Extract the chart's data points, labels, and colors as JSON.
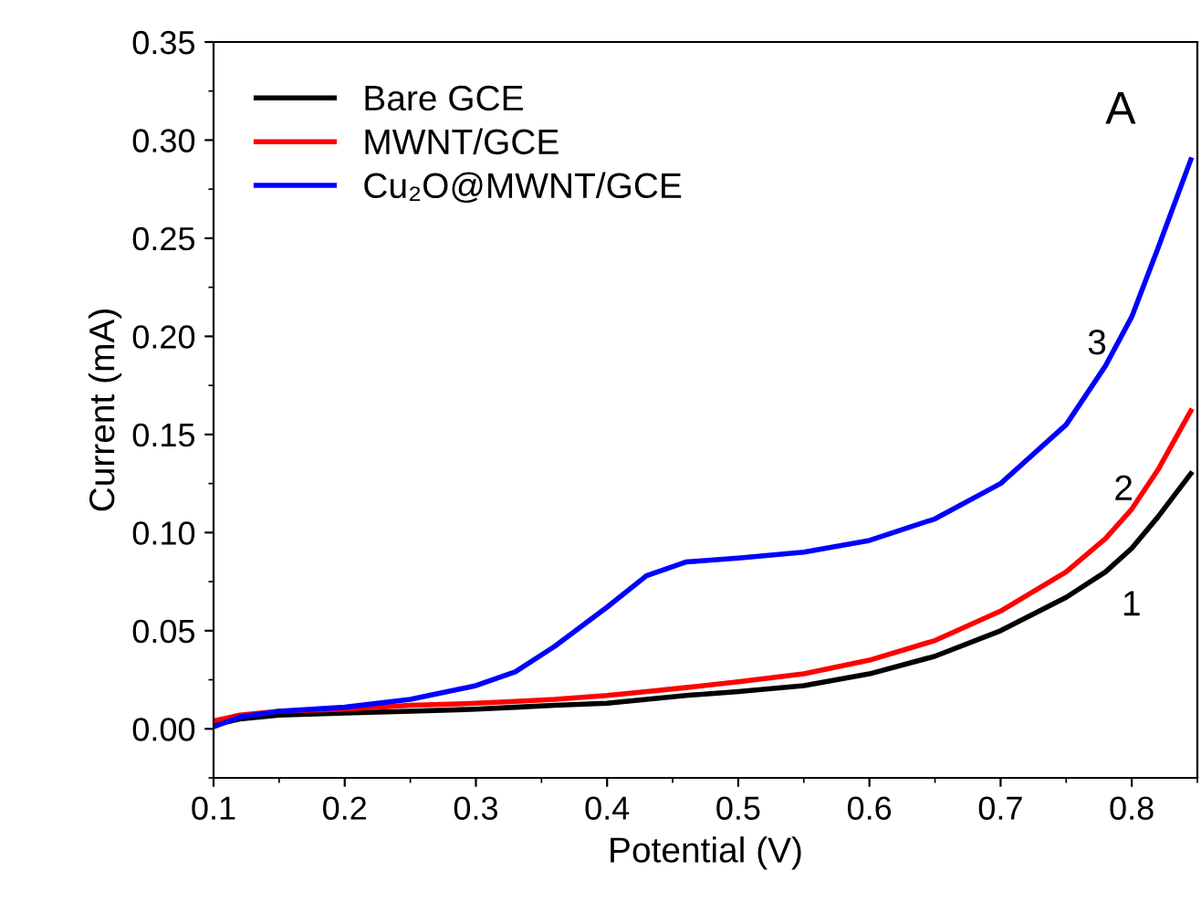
{
  "chart_data": {
    "type": "line",
    "xlabel": "Potential (V)",
    "ylabel": "Current (mA)",
    "xlim": [
      0.1,
      0.85
    ],
    "ylim": [
      -0.025,
      0.35
    ],
    "xticks": [
      0.1,
      0.2,
      0.3,
      0.4,
      0.5,
      0.6,
      0.7,
      0.8
    ],
    "yticks": [
      {
        "value": 0,
        "label": "0.00"
      },
      0.05,
      {
        "value": 0.1,
        "label": "0.10"
      },
      0.15,
      {
        "value": 0.2,
        "label": "0.20"
      },
      0.25,
      {
        "value": 0.3,
        "label": "0.30"
      },
      0.35
    ],
    "legend": "top left",
    "grid": false,
    "x": [
      0.1,
      0.12,
      0.15,
      0.2,
      0.25,
      0.3,
      0.33,
      0.36,
      0.4,
      0.43,
      0.46,
      0.5,
      0.55,
      0.6,
      0.65,
      0.7,
      0.75,
      0.78,
      0.8,
      0.82,
      0.845
    ],
    "series": [
      {
        "name": "Bare GCE",
        "color": "#000000",
        "values": [
          0.002,
          0.005,
          0.007,
          0.008,
          0.009,
          0.01,
          0.011,
          0.012,
          0.013,
          0.015,
          0.017,
          0.019,
          0.022,
          0.028,
          0.037,
          0.05,
          0.067,
          0.08,
          0.092,
          0.108,
          0.13
        ]
      },
      {
        "name": "MWNT/GCE",
        "color": "#ff0000",
        "values": [
          0.004,
          0.007,
          0.009,
          0.01,
          0.012,
          0.013,
          0.014,
          0.015,
          0.017,
          0.019,
          0.021,
          0.024,
          0.028,
          0.035,
          0.045,
          0.06,
          0.08,
          0.097,
          0.112,
          0.132,
          0.162
        ]
      },
      {
        "name": "Cu₂O@MWNT/GCE",
        "color": "#0000ff",
        "values": [
          0.001,
          0.006,
          0.009,
          0.011,
          0.015,
          0.022,
          0.029,
          0.042,
          0.062,
          0.078,
          0.085,
          0.087,
          0.09,
          0.096,
          0.107,
          0.125,
          0.155,
          0.185,
          0.21,
          0.245,
          0.29
        ]
      }
    ],
    "annotations": [
      "A",
      "3",
      "2",
      "1"
    ]
  }
}
